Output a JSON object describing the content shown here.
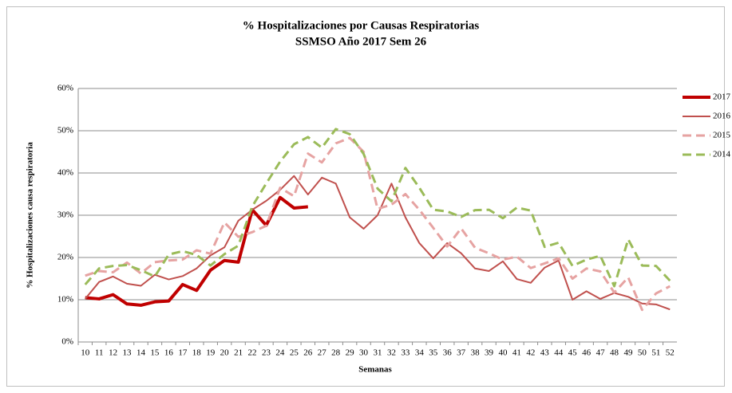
{
  "chart_data": {
    "type": "line",
    "title": "% Hospitalizaciones por Causas Respiratorias",
    "subtitle": "SSMSO Año 2017 Sem 26",
    "x_label": "Semanas",
    "y_label": "% Hospitalizaciones causa respiratoria",
    "categories": [
      10,
      11,
      12,
      13,
      14,
      15,
      16,
      17,
      18,
      19,
      20,
      21,
      22,
      23,
      24,
      25,
      26,
      27,
      28,
      29,
      30,
      31,
      32,
      33,
      34,
      35,
      36,
      37,
      38,
      39,
      40,
      41,
      42,
      43,
      44,
      45,
      46,
      47,
      48,
      49,
      50,
      51,
      52
    ],
    "ylim": [
      0,
      60
    ],
    "yticks": [
      {
        "value": 0,
        "label": "0%"
      },
      {
        "value": 10,
        "label": "10%"
      },
      {
        "value": 20,
        "label": "20%"
      },
      {
        "value": 30,
        "label": "30%"
      },
      {
        "value": 40,
        "label": "40%"
      },
      {
        "value": 50,
        "label": "50%"
      },
      {
        "value": 60,
        "label": "60%"
      }
    ],
    "grid": true,
    "legend": "right",
    "series": [
      {
        "name": "2017",
        "color": "#c00000",
        "dash": "solid",
        "line_width": 4,
        "values": [
          10.5,
          10.2,
          11.2,
          9,
          8.7,
          9.5,
          9.7,
          13.6,
          12.2,
          17,
          19.3,
          18.9,
          31.3,
          27.6,
          34.2,
          31.7,
          32,
          null,
          null,
          null,
          null,
          null,
          null,
          null,
          null,
          null,
          null,
          null,
          null,
          null,
          null,
          null,
          null,
          null,
          null,
          null,
          null,
          null,
          null,
          null,
          null,
          null,
          null
        ]
      },
      {
        "name": "2016",
        "color": "#c0504d",
        "dash": "solid",
        "line_width": 2,
        "values": [
          10.2,
          14.2,
          15.5,
          13.8,
          13.3,
          15.9,
          14.8,
          15.6,
          17.4,
          20.5,
          22.4,
          28.7,
          31.3,
          33.4,
          36,
          39.3,
          34.9,
          38.9,
          37.5,
          29.5,
          26.8,
          30,
          37.5,
          29.5,
          23.4,
          19.8,
          23.4,
          21,
          17.4,
          16.8,
          19.1,
          14.9,
          14,
          17.6,
          19.3,
          10,
          12,
          10.2,
          11.6,
          10.7,
          9.1,
          8.9,
          7.7
        ]
      },
      {
        "name": "2015",
        "color": "#e6a3a2",
        "dash": "dash",
        "line_width": 3,
        "values": [
          15.7,
          16.8,
          16.5,
          18.8,
          16.2,
          18.9,
          19.3,
          19.5,
          21.7,
          20.9,
          28.3,
          24.9,
          26,
          27.5,
          36.5,
          34.5,
          44.6,
          42.5,
          47,
          48.3,
          45,
          31.5,
          32.5,
          35,
          31.3,
          27,
          22.6,
          26.9,
          22.3,
          21,
          19.5,
          20.2,
          17.5,
          18.6,
          19.8,
          15,
          17.4,
          16.7,
          11.7,
          15.3,
          7.6,
          11.5,
          13.2
        ]
      },
      {
        "name": "2014",
        "color": "#9bbb59",
        "dash": "dash",
        "line_width": 3,
        "values": [
          13.6,
          17.4,
          18,
          18.2,
          17,
          15.5,
          20.7,
          21.5,
          20.6,
          18.1,
          20.8,
          22.8,
          32.1,
          37.5,
          42.7,
          46.8,
          48.5,
          46,
          50.4,
          49.2,
          44.5,
          36.3,
          33.3,
          41.2,
          36.5,
          31.3,
          30.9,
          29.6,
          31.2,
          31.3,
          29.3,
          31.8,
          31.1,
          22.5,
          23.5,
          18,
          19.5,
          20.4,
          13.2,
          24.3,
          18.1,
          18,
          14.5
        ]
      }
    ]
  }
}
